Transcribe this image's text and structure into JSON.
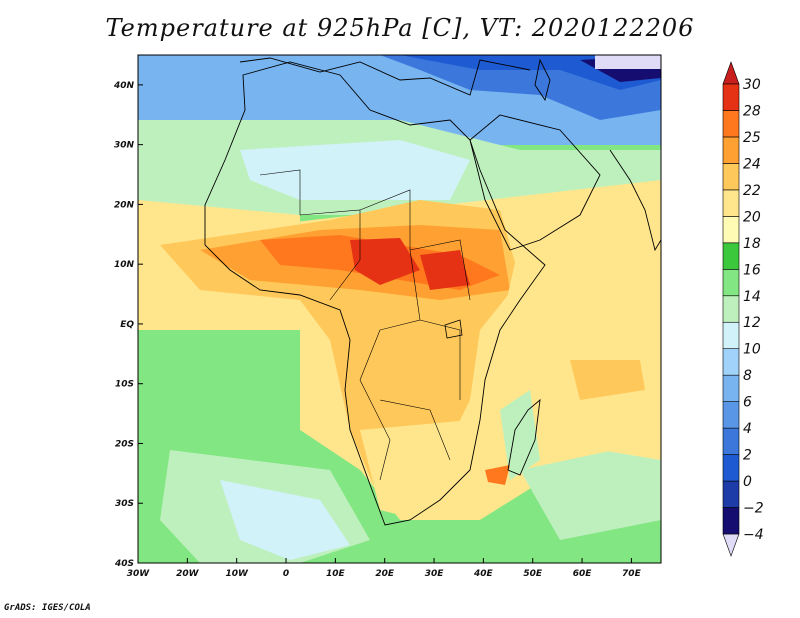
{
  "title": "Temperature at 925hPa [C], VT: 2020122206",
  "credit": "GrADS: IGES/COLA",
  "map": {
    "lon_range": [
      -30,
      76
    ],
    "lat_range": [
      -40,
      45
    ],
    "lon_ticks": [
      {
        "value": -30,
        "label": "30W"
      },
      {
        "value": -20,
        "label": "20W"
      },
      {
        "value": -10,
        "label": "10W"
      },
      {
        "value": 0,
        "label": "0"
      },
      {
        "value": 10,
        "label": "10E"
      },
      {
        "value": 20,
        "label": "20E"
      },
      {
        "value": 30,
        "label": "30E"
      },
      {
        "value": 40,
        "label": "40E"
      },
      {
        "value": 50,
        "label": "50E"
      },
      {
        "value": 60,
        "label": "60E"
      },
      {
        "value": 70,
        "label": "70E"
      }
    ],
    "lat_ticks": [
      {
        "value": 40,
        "label": "40N"
      },
      {
        "value": 30,
        "label": "30N"
      },
      {
        "value": 20,
        "label": "20N"
      },
      {
        "value": 10,
        "label": "10N"
      },
      {
        "value": 0,
        "label": "EQ"
      },
      {
        "value": -10,
        "label": "10S"
      },
      {
        "value": -20,
        "label": "20S"
      },
      {
        "value": -30,
        "label": "30S"
      },
      {
        "value": -40,
        "label": "40S"
      }
    ]
  },
  "colorbar": {
    "levels": [
      "-4",
      "-2",
      "0",
      "2",
      "4",
      "6",
      "8",
      "10",
      "12",
      "14",
      "16",
      "18",
      "20",
      "22",
      "24",
      "25",
      "28",
      "30"
    ],
    "colors": [
      "#e0dcf8",
      "#150e70",
      "#1e3ca8",
      "#1e5ad2",
      "#3c78dc",
      "#5a96e6",
      "#78b4f0",
      "#a0d2fa",
      "#d2f2fa",
      "#bef0be",
      "#82e682",
      "#3cc83c",
      "#fffab4",
      "#ffe68c",
      "#ffc85a",
      "#ffa032",
      "#ff781e",
      "#e63214",
      "#c81e1e"
    ]
  }
}
